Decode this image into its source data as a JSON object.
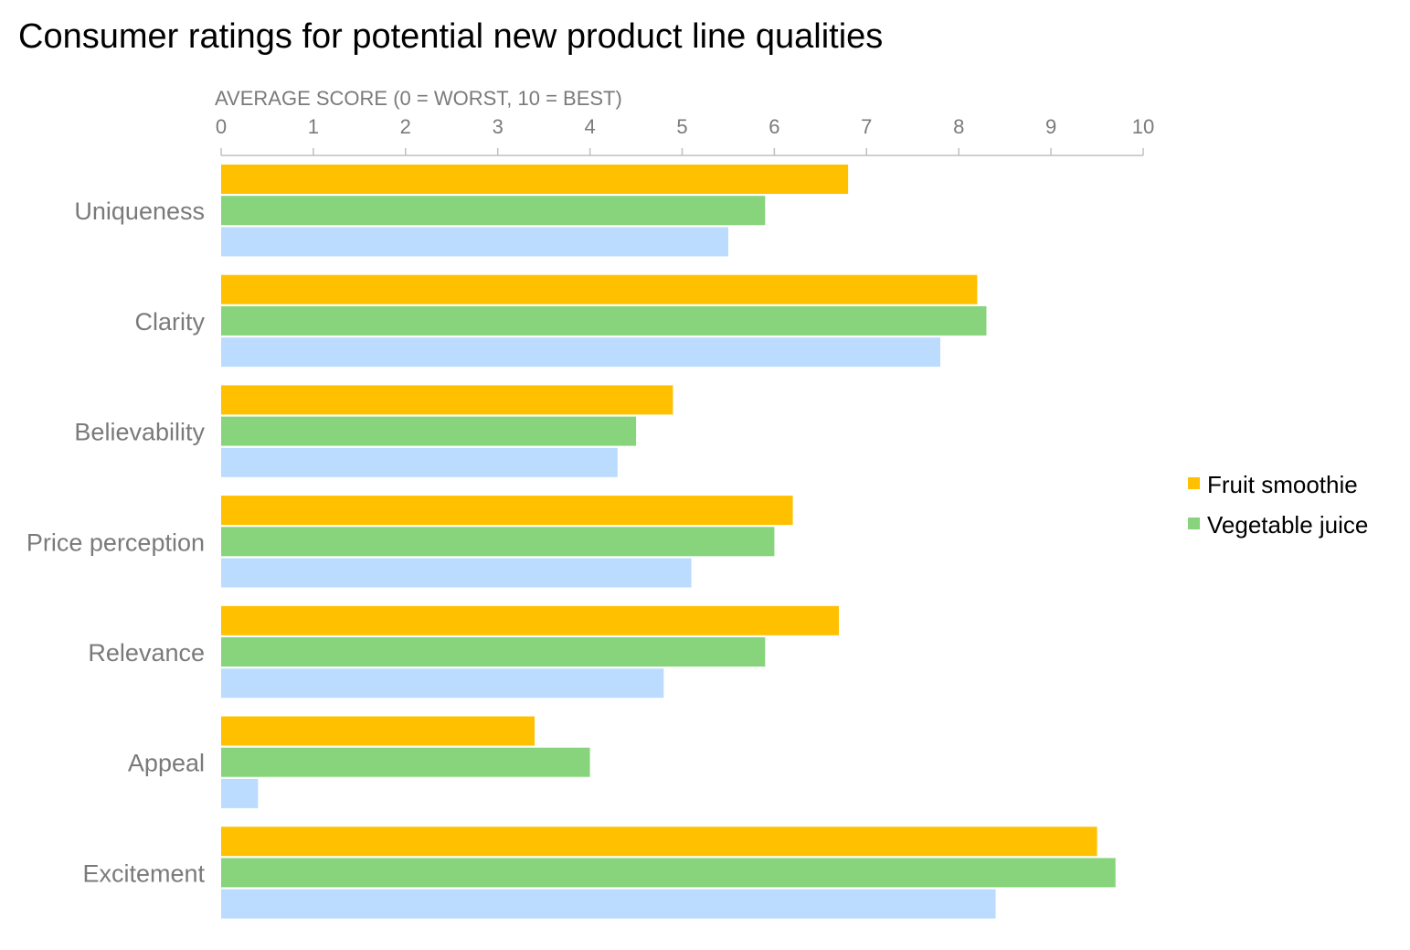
{
  "chart_data": {
    "type": "bar",
    "orientation": "horizontal",
    "title": "Consumer ratings for potential new product line qualities",
    "xlabel": "AVERAGE SCORE (0 = WORST, 10 = BEST)",
    "xlim": [
      0,
      10
    ],
    "xticks": [
      "0",
      "1",
      "2",
      "3",
      "4",
      "5",
      "6",
      "7",
      "8",
      "9",
      "10"
    ],
    "categories": [
      "Uniqueness",
      "Clarity",
      "Believability",
      "Price perception",
      "Relevance",
      "Appeal",
      "Excitement"
    ],
    "series": [
      {
        "name": "Fruit smoothie",
        "color": "#FFC000",
        "values": [
          6.8,
          8.2,
          4.9,
          6.2,
          6.7,
          3.4,
          9.5
        ]
      },
      {
        "name": "Vegetable juice",
        "color": "#88D47C",
        "values": [
          5.9,
          8.3,
          4.5,
          6.0,
          5.9,
          4.0,
          9.7
        ]
      },
      {
        "color": "#BBDCFF",
        "values": [
          5.5,
          7.8,
          4.3,
          5.1,
          4.8,
          0.4,
          8.4
        ]
      }
    ],
    "legend": {
      "position": "right",
      "entries": [
        "Fruit smoothie",
        "Vegetable juice"
      ]
    },
    "grid": false
  }
}
